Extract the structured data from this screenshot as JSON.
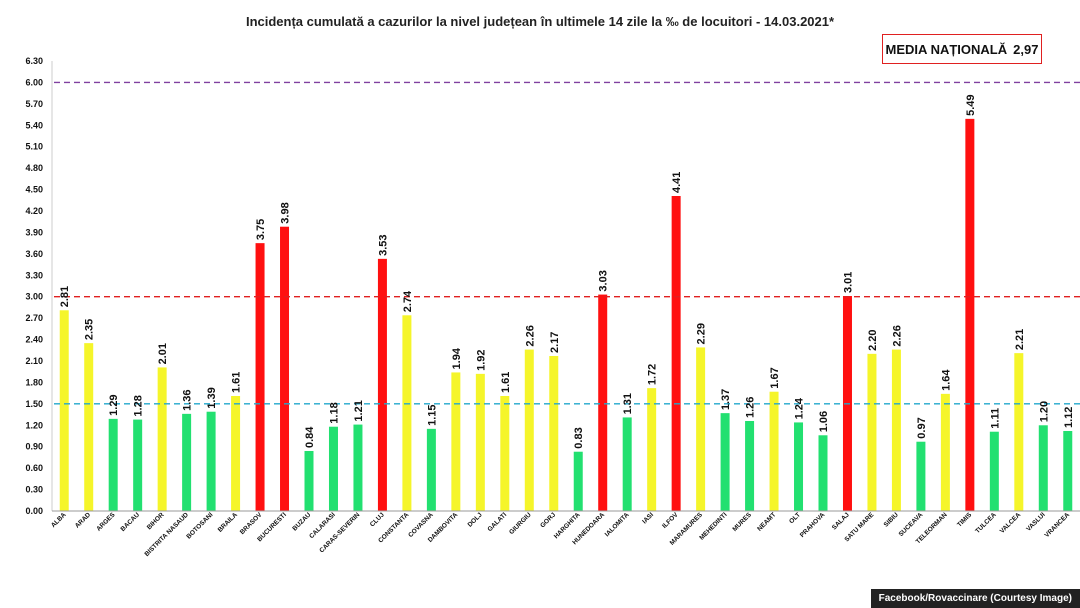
{
  "chart_data": {
    "type": "bar",
    "title": "Incidența cumulată a cazurilor la nivel județean în ultimele 14 zile la ‰ de locuitori - 14.03.2021*",
    "categories": [
      "ALBA",
      "ARAD",
      "ARGES",
      "BACAU",
      "BIHOR",
      "BISTRITA NASAUD",
      "BOTOSANI",
      "BRAILA",
      "BRASOV",
      "BUCURESTI",
      "BUZAU",
      "CALARASI",
      "CARAS-SEVERIN",
      "CLUJ",
      "CONSTANTA",
      "COVASNA",
      "DAMBOVITA",
      "DOLJ",
      "GALATI",
      "GIURGIU",
      "GORJ",
      "HARGHITA",
      "HUNEDOARA",
      "IALOMITA",
      "IASI",
      "ILFOV",
      "MARAMURES",
      "MEHEDINTI",
      "MURES",
      "NEAMT",
      "OLT",
      "PRAHOVA",
      "SALAJ",
      "SATU MARE",
      "SIBIU",
      "SUCEAVA",
      "TELEORMAN",
      "TIMIS",
      "TULCEA",
      "VALCEA",
      "VASLUI",
      "VRANCEA"
    ],
    "values": [
      2.81,
      2.35,
      1.29,
      1.28,
      2.01,
      1.36,
      1.39,
      1.61,
      3.75,
      3.98,
      0.84,
      1.18,
      1.21,
      3.53,
      2.74,
      1.15,
      1.94,
      1.92,
      1.61,
      2.26,
      2.17,
      0.83,
      3.03,
      1.31,
      1.72,
      4.41,
      2.29,
      1.37,
      1.26,
      1.67,
      1.24,
      1.06,
      3.01,
      2.2,
      2.26,
      0.97,
      1.64,
      5.49,
      1.11,
      2.21,
      1.2,
      1.12
    ],
    "value_labels": [
      "2.81",
      "2.35",
      "1.29",
      "1.28",
      "2.01",
      "1.36",
      "1.39",
      "1.61",
      "3.75",
      "3.98",
      "0.84",
      "1.18",
      "1.21",
      "3.53",
      "2.74",
      "1.15",
      "1.94",
      "1.92",
      "1.61",
      "2.26",
      "2.17",
      "0.83",
      "3.03",
      "1.31",
      "1.72",
      "4.41",
      "2.29",
      "1.37",
      "1.26",
      "1.67",
      "1.24",
      "1.06",
      "3.01",
      "2.20",
      "2.26",
      "0.97",
      "1.64",
      "5.49",
      "1.11",
      "2.21",
      "1.20",
      "1.12"
    ],
    "ylim": [
      0,
      6.3
    ],
    "yticks": [
      "0.00",
      "0.30",
      "0.60",
      "0.90",
      "1.20",
      "1.50",
      "1.80",
      "2.10",
      "2.40",
      "2.70",
      "3.00",
      "3.30",
      "3.60",
      "3.90",
      "4.20",
      "4.50",
      "4.80",
      "5.10",
      "5.40",
      "5.70",
      "6.00",
      "6.30"
    ],
    "thresholds": [
      {
        "value": 1.5,
        "color": "#22a8cc"
      },
      {
        "value": 3.0,
        "color": "#e02020"
      },
      {
        "value": 6.0,
        "color": "#8040a0"
      }
    ],
    "colors": {
      "green": "#22e070",
      "yellow": "#f5f52a",
      "red": "#ff1010"
    },
    "grid": false,
    "legend": "none"
  },
  "annotation": {
    "label": "MEDIA NAȚIONALĂ",
    "value": "2,97"
  },
  "credit": "Facebook/Rovaccinare (Courtesy Image)"
}
